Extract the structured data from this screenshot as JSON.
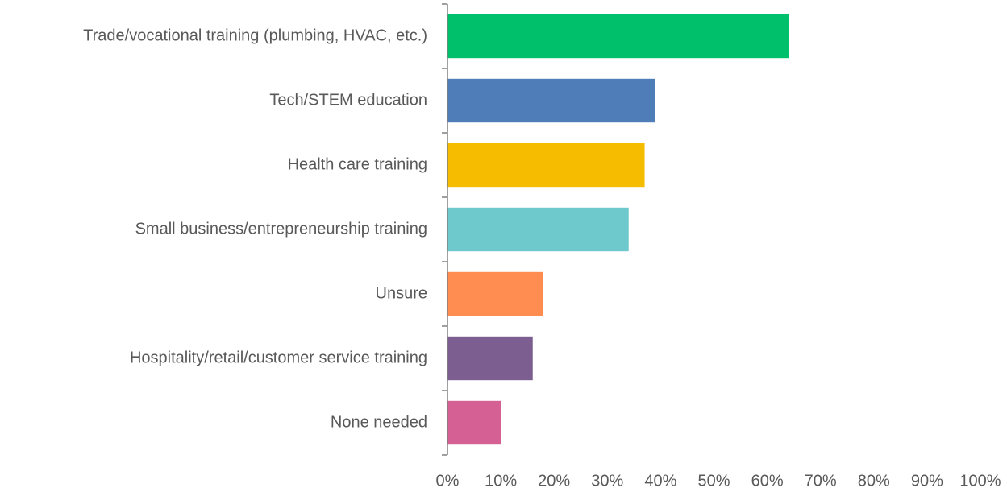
{
  "chart_data": {
    "type": "bar",
    "orientation": "horizontal",
    "categories": [
      "Trade/vocational training (plumbing, HVAC, etc.)",
      "Tech/STEM education",
      "Health care training",
      "Small business/entrepreneurship training",
      "Unsure",
      "Hospitality/retail/customer service training",
      "None needed"
    ],
    "values": [
      64,
      39,
      37,
      34,
      18,
      16,
      10
    ],
    "colors": [
      "#00c06b",
      "#4e7db8",
      "#f6bd00",
      "#6ec9cd",
      "#ff8c51",
      "#7c5f90",
      "#d56093"
    ],
    "xlim": [
      0,
      100
    ],
    "xticks": [
      {
        "value": 0,
        "label": "0%"
      },
      {
        "value": 10,
        "label": "10%"
      },
      {
        "value": 20,
        "label": "20%"
      },
      {
        "value": 30,
        "label": "30%"
      },
      {
        "value": 40,
        "label": "40%"
      },
      {
        "value": 50,
        "label": "50%"
      },
      {
        "value": 60,
        "label": "60%"
      },
      {
        "value": 70,
        "label": "70%"
      },
      {
        "value": 80,
        "label": "80%"
      },
      {
        "value": 90,
        "label": "90%"
      },
      {
        "value": 100,
        "label": "100%"
      }
    ],
    "grid": false
  }
}
